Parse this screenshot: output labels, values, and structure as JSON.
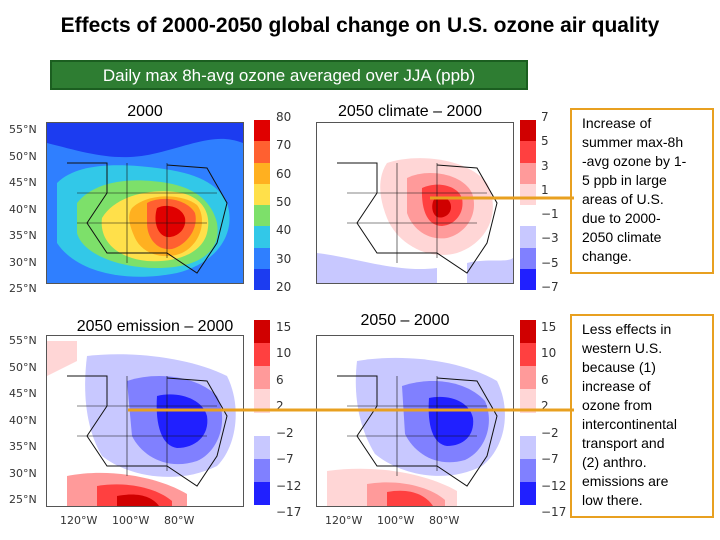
{
  "title": "Effects of 2000-2050 global change on U.S. ozone air quality",
  "subtitle": "Daily max 8h-avg ozone averaged over JJA (ppb)",
  "colors": {
    "accent": "#2e7d32",
    "connector": "#e8a020",
    "low": "#0000cc",
    "high": "#cc0000"
  },
  "chart_data": [
    {
      "type": "heatmap",
      "title": "2000",
      "colorbar": {
        "ticks": [
          "80",
          "70",
          "60",
          "50",
          "40",
          "30",
          "20"
        ],
        "range": [
          20,
          80
        ],
        "colors": [
          "#e00000",
          "#ff6030",
          "#ffb020",
          "#ffe04a",
          "#7de06a",
          "#32c8e8",
          "#2f7fff",
          "#1c3cf0"
        ]
      }
    },
    {
      "type": "heatmap",
      "title": "2050 climate – 2000",
      "colorbar": {
        "ticks": [
          "7",
          "5",
          "3",
          "1",
          "−1",
          "−3",
          "−5",
          "−7"
        ],
        "range": [
          -7,
          7
        ],
        "colors": [
          "#d00000",
          "#ff4040",
          "#ff9a9a",
          "#ffd6d6",
          "#ffffff",
          "#c8c8ff",
          "#8080ff",
          "#2020ff"
        ]
      }
    },
    {
      "type": "heatmap",
      "title": "2050 emission – 2000",
      "colorbar": {
        "ticks": [
          "15",
          "10",
          "6",
          "2",
          "−2",
          "−7",
          "−12",
          "−17"
        ],
        "range": [
          -17,
          15
        ],
        "colors": [
          "#d00000",
          "#ff4040",
          "#ff9a9a",
          "#ffd6d6",
          "#ffffff",
          "#c8c8ff",
          "#8080ff",
          "#2020ff"
        ]
      }
    },
    {
      "type": "heatmap",
      "title": "2050 – 2000",
      "colorbar": {
        "ticks": [
          "15",
          "10",
          "6",
          "2",
          "−2",
          "−7",
          "−12",
          "−17"
        ],
        "range": [
          -17,
          15
        ],
        "colors": [
          "#d00000",
          "#ff4040",
          "#ff9a9a",
          "#ffd6d6",
          "#ffffff",
          "#c8c8ff",
          "#8080ff",
          "#2020ff"
        ]
      }
    }
  ],
  "lat_labels_top": [
    "55°N",
    "50°N",
    "45°N",
    "40°N",
    "35°N",
    "30°N",
    "25°N"
  ],
  "lat_labels_bottom": [
    "55°N",
    "50°N",
    "45°N",
    "40°N",
    "35°N",
    "30°N",
    "25°N"
  ],
  "lon_labels_left": [
    "120°W",
    "100°W",
    "80°W"
  ],
  "lon_labels_right": [
    "120°W",
    "100°W",
    "80°W"
  ],
  "note1": {
    "lines": [
      "Increase of",
      "summer max-8h",
      "-avg ozone by 1-",
      "5 ppb in large",
      "areas of U.S.",
      "due to 2000-",
      "2050 climate",
      "change."
    ]
  },
  "note2": {
    "lines": [
      "Less effects in",
      "western U.S.",
      "because (1)",
      "increase of",
      "ozone from",
      "intercontinental",
      "transport and",
      "(2) anthro.",
      "emissions are",
      "low there."
    ]
  }
}
